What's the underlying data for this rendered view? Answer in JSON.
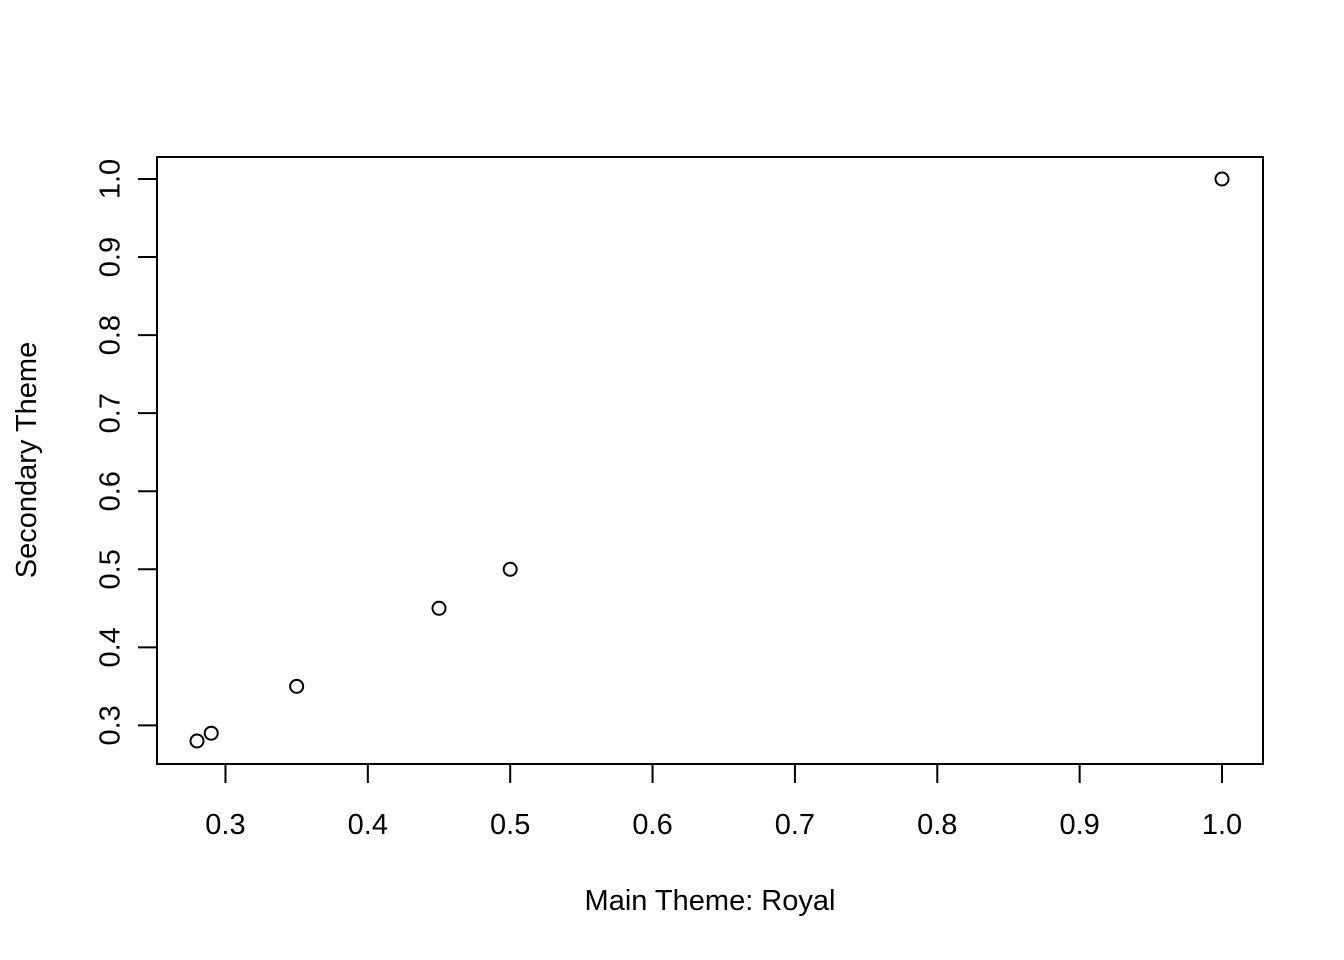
{
  "chart_data": {
    "type": "scatter",
    "title": "",
    "xlabel": "Main Theme: Royal",
    "ylabel": "Secondary Theme",
    "xlim": [
      0.28,
      1.0
    ],
    "ylim": [
      0.28,
      1.0
    ],
    "x_ticks": [
      0.3,
      0.4,
      0.5,
      0.6,
      0.7,
      0.8,
      0.9,
      1.0
    ],
    "y_ticks": [
      0.3,
      0.4,
      0.5,
      0.6,
      0.7,
      0.8,
      0.9,
      1.0
    ],
    "x_tick_labels": [
      "0.3",
      "0.4",
      "0.5",
      "0.6",
      "0.7",
      "0.8",
      "0.9",
      "1.0"
    ],
    "y_tick_labels": [
      "0.3",
      "0.4",
      "0.5",
      "0.6",
      "0.7",
      "0.8",
      "0.9",
      "1.0"
    ],
    "grid": false,
    "point_style": "open-circle",
    "color": "#000000",
    "points": [
      {
        "x": 0.28,
        "y": 0.28
      },
      {
        "x": 0.29,
        "y": 0.29
      },
      {
        "x": 0.35,
        "y": 0.35
      },
      {
        "x": 0.45,
        "y": 0.45
      },
      {
        "x": 0.5,
        "y": 0.5
      },
      {
        "x": 1.0,
        "y": 1.0
      }
    ]
  }
}
